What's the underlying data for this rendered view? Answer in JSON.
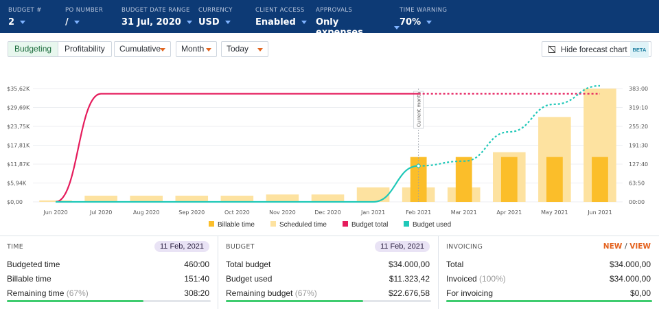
{
  "header": {
    "fields": [
      {
        "label": "BUDGET #",
        "value": "2"
      },
      {
        "label": "PO NUMBER",
        "value": "/"
      },
      {
        "label": "BUDGET DATE RANGE",
        "value": "31 Jul, 2020"
      },
      {
        "label": "CURRENCY",
        "value": "USD"
      },
      {
        "label": "CLIENT ACCESS",
        "value": "Enabled"
      },
      {
        "label": "APPROVALS",
        "value": "Only expenses"
      },
      {
        "label": "TIME WARNING",
        "value": "70%"
      }
    ]
  },
  "toolbar": {
    "view_tabs": [
      "Budgeting",
      "Profitability"
    ],
    "mode": "Cumulative",
    "period": "Month",
    "anchor": "Today",
    "hide_forecast_label": "Hide forecast chart",
    "beta_label": "BETA"
  },
  "colors": {
    "billable": "#fbbe2a",
    "scheduled": "#fde2a0",
    "budget_total": "#e51c5c",
    "budget_used": "#1fc8b8",
    "header_bg": "#0d3a75",
    "progress": "#3fcc6f"
  },
  "chart_data": {
    "type": "bar",
    "categories": [
      "Jun 2020",
      "Jul 2020",
      "Aug 2020",
      "Sep 2020",
      "Oct 2020",
      "Nov 2020",
      "Dec 2020",
      "Jan 2021",
      "Feb 2021",
      "Mar 2021",
      "Apr 2021",
      "May 2021",
      "Jun 2021"
    ],
    "left_ticks": [
      "$0,00",
      "$5,94K",
      "$11,87K",
      "$17,81K",
      "$23,75K",
      "$29,69K",
      "$35,62K"
    ],
    "right_ticks": [
      "00:00",
      "63:50",
      "127:40",
      "191:30",
      "255:20",
      "319:10",
      "383:00"
    ],
    "ylim_left": [
      0,
      35620
    ],
    "ylim_right_hours": [
      0,
      383
    ],
    "current_month_label": "Current month",
    "current_month": "Feb 2021",
    "series": [
      {
        "name": "Billable time",
        "kind": "bar",
        "values": [
          0,
          0,
          0,
          0,
          0,
          0,
          0,
          0,
          151.7,
          151.7,
          151.7,
          151.7,
          151.7
        ]
      },
      {
        "name": "Scheduled time",
        "kind": "bar",
        "values": [
          5,
          21,
          21,
          21,
          21,
          25,
          25,
          49,
          49,
          49,
          168,
          287,
          383
        ]
      },
      {
        "name": "Budget total",
        "kind": "line",
        "values": [
          0,
          34000,
          34000,
          34000,
          34000,
          34000,
          34000,
          34000,
          34000,
          34000,
          34000,
          34000,
          34000
        ]
      },
      {
        "name": "Budget used",
        "kind": "line",
        "values": [
          0,
          0,
          0,
          0,
          0,
          0,
          0,
          0,
          11323,
          12800,
          22000,
          30700,
          36500
        ]
      }
    ]
  },
  "panels": {
    "time": {
      "title": "TIME",
      "date": "11 Feb, 2021",
      "rows": [
        {
          "label": "Budgeted time",
          "value": "460:00"
        },
        {
          "label": "Billable time",
          "value": "151:40"
        },
        {
          "label": "Remaining time",
          "pct": "(67%)",
          "value": "308:20"
        }
      ],
      "progress": 0.67
    },
    "budget": {
      "title": "BUDGET",
      "date": "11 Feb, 2021",
      "rows": [
        {
          "label": "Total budget",
          "value": "$34.000,00"
        },
        {
          "label": "Budget used",
          "value": "$11.323,42"
        },
        {
          "label": "Remaining budget",
          "pct": "(67%)",
          "value": "$22.676,58"
        }
      ],
      "progress": 0.67
    },
    "invoicing": {
      "title": "INVOICING",
      "new_label": "NEW",
      "sep": "/",
      "view_label": "VIEW",
      "rows": [
        {
          "label": "Total",
          "value": "$34.000,00"
        },
        {
          "label": "Invoiced",
          "pct": "(100%)",
          "value": "$34.000,00"
        },
        {
          "label": "For invoicing",
          "value": "$0,00"
        }
      ],
      "progress": 1.0
    }
  }
}
